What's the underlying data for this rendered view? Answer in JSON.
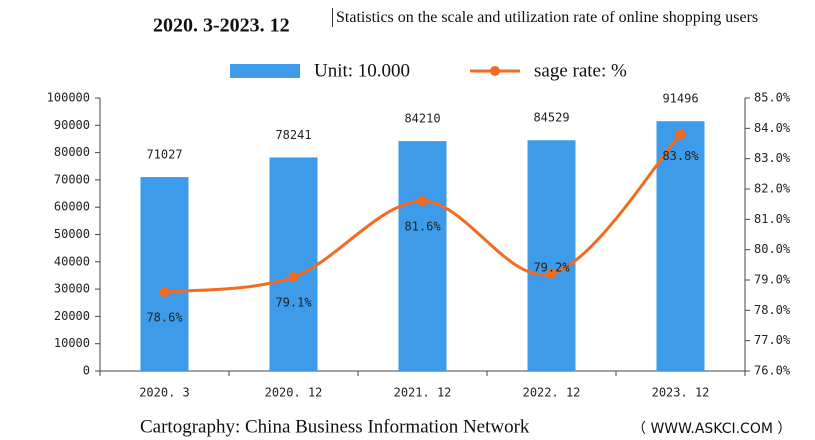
{
  "chart_data": {
    "type": "bar",
    "title": "2020. 3-2023. 12",
    "subtitle": "Statistics on the scale and utilization rate of online shopping users",
    "categories": [
      "2020. 3",
      "2020. 12",
      "2021. 12",
      "2022. 12",
      "2023. 12"
    ],
    "series": [
      {
        "name": "Unit: 10.000",
        "type": "bar",
        "color": "#3d9be9",
        "values": [
          71027,
          78241,
          84210,
          84529,
          91496
        ]
      },
      {
        "name": "sage rate: %",
        "type": "line",
        "axis": "y2",
        "color": "#f26b21",
        "values": [
          78.6,
          79.1,
          81.6,
          79.2,
          83.8
        ],
        "value_labels": [
          "78.6%",
          "79.1%",
          "81.6%",
          "79.2%",
          "83.8%"
        ]
      }
    ],
    "ylim": [
      0,
      100000
    ],
    "yticks": [
      0,
      10000,
      20000,
      30000,
      40000,
      50000,
      60000,
      70000,
      80000,
      90000,
      100000
    ],
    "y2lim": [
      76,
      85
    ],
    "y2ticks": [
      {
        "value": 76,
        "label": "76.0%"
      },
      {
        "value": 77,
        "label": "77.0%"
      },
      {
        "value": 78,
        "label": "78.0%"
      },
      {
        "value": 79,
        "label": "79.0%"
      },
      {
        "value": 80,
        "label": "80.0%"
      },
      {
        "value": 81,
        "label": "81.0%"
      },
      {
        "value": 82,
        "label": "82.0%"
      },
      {
        "value": 83,
        "label": "83.0%"
      },
      {
        "value": 84,
        "label": "84.0%"
      },
      {
        "value": 85,
        "label": "85.0%"
      }
    ],
    "source": "Cartography: China Business Information Network",
    "website": "（ WWW.ASKCI.COM ）"
  }
}
